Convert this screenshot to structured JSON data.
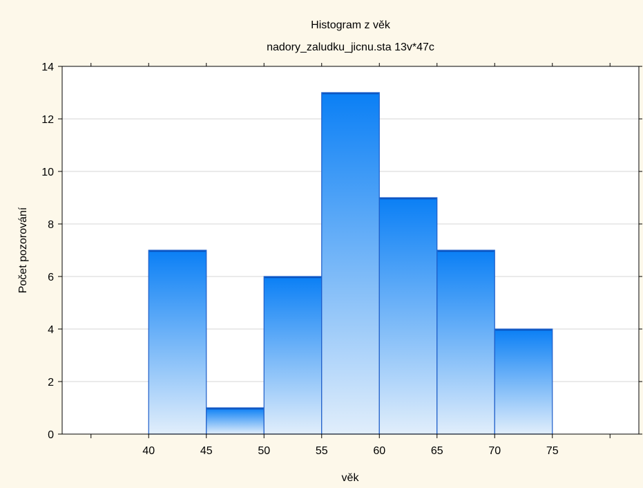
{
  "chart_data": {
    "type": "bar",
    "title": "Histogram z věk",
    "subtitle": "nadory_zaludku_jicnu.sta 13v*47c",
    "xlabel": "věk",
    "ylabel": "Počet pozorování",
    "xlim": [
      32.5,
      82.5
    ],
    "ylim": [
      0,
      14
    ],
    "x_ticks": [
      40,
      45,
      50,
      55,
      60,
      65,
      70,
      75
    ],
    "y_ticks": [
      0,
      2,
      4,
      6,
      8,
      10,
      12,
      14
    ],
    "bins": [
      {
        "start": 40,
        "end": 45,
        "count": 7
      },
      {
        "start": 45,
        "end": 50,
        "count": 1
      },
      {
        "start": 50,
        "end": 55,
        "count": 6
      },
      {
        "start": 55,
        "end": 60,
        "count": 13
      },
      {
        "start": 60,
        "end": 65,
        "count": 9
      },
      {
        "start": 65,
        "end": 70,
        "count": 7
      },
      {
        "start": 70,
        "end": 75,
        "count": 4
      }
    ],
    "grid": true,
    "colors": {
      "bar_top": "#0a7ff5",
      "bar_bottom": "#e1eefb",
      "bar_edge": "#1c5cc8",
      "background": "#fdf8ea"
    }
  }
}
